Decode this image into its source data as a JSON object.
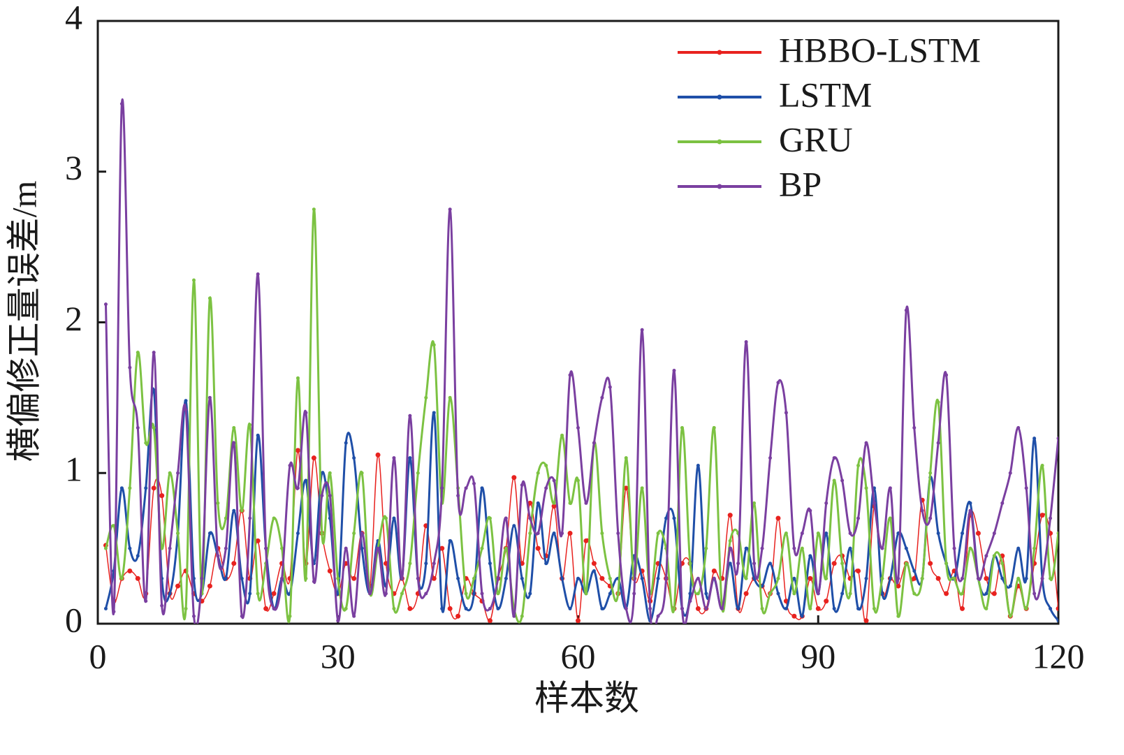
{
  "chart_data": {
    "type": "line",
    "xlabel": "样本数",
    "ylabel": "横偏修正量误差/m",
    "x": [
      1,
      2,
      3,
      4,
      5,
      6,
      7,
      8,
      9,
      10,
      11,
      12,
      13,
      14,
      15,
      16,
      17,
      18,
      19,
      20,
      21,
      22,
      23,
      24,
      25,
      26,
      27,
      28,
      29,
      30,
      31,
      32,
      33,
      34,
      35,
      36,
      37,
      38,
      39,
      40,
      41,
      42,
      43,
      44,
      45,
      46,
      47,
      48,
      49,
      50,
      51,
      52,
      53,
      54,
      55,
      56,
      57,
      58,
      59,
      60,
      61,
      62,
      63,
      64,
      65,
      66,
      67,
      68,
      69,
      70,
      71,
      72,
      73,
      74,
      75,
      76,
      77,
      78,
      79,
      80,
      81,
      82,
      83,
      84,
      85,
      86,
      87,
      88,
      89,
      90,
      91,
      92,
      93,
      94,
      95,
      96,
      97,
      98,
      99,
      100,
      101,
      102,
      103,
      104,
      105,
      106,
      107,
      108,
      109,
      110,
      111,
      112,
      113,
      114,
      115,
      116,
      117,
      118,
      119,
      120
    ],
    "xlim": [
      0,
      120
    ],
    "xticks": [
      0,
      30,
      60,
      90,
      120
    ],
    "ylim": [
      0,
      4
    ],
    "yticks": [
      0,
      1,
      2,
      3,
      4
    ],
    "legend": "upper right",
    "series": [
      {
        "name": "HBBO-LSTM",
        "color": "#e8221f",
        "values": [
          0.52,
          0.15,
          0.3,
          0.35,
          0.3,
          0.2,
          0.9,
          0.85,
          0.2,
          0.25,
          0.35,
          0.2,
          0.15,
          0.25,
          0.5,
          0.3,
          0.4,
          0.75,
          0.3,
          0.55,
          0.1,
          0.2,
          0.4,
          0.3,
          1.15,
          0.4,
          1.1,
          0.6,
          0.35,
          0.2,
          0.4,
          0.3,
          0.6,
          0.25,
          1.12,
          0.4,
          0.2,
          0.3,
          0.1,
          0.2,
          0.65,
          0.3,
          0.5,
          0.1,
          0.05,
          0.3,
          0.2,
          0.15,
          0.02,
          0.3,
          0.5,
          0.97,
          0.4,
          0.8,
          0.5,
          0.45,
          0.78,
          0.3,
          0.6,
          0.02,
          0.55,
          0.4,
          0.3,
          0.25,
          0.2,
          0.9,
          0.3,
          0.35,
          0.15,
          0.4,
          0.3,
          0.1,
          0.4,
          0.4,
          0.1,
          0.1,
          0.35,
          0.3,
          0.72,
          0.1,
          0.2,
          0.3,
          0.25,
          0.2,
          0.7,
          0.15,
          0.05,
          0.05,
          0.3,
          0.1,
          0.15,
          0.4,
          0.45,
          0.3,
          0.35,
          0.02,
          0.78,
          0.2,
          0.3,
          0.25,
          0.4,
          0.3,
          0.82,
          0.4,
          0.3,
          0.2,
          0.35,
          0.1,
          0.72,
          0.6,
          0.3,
          0.2,
          0.45,
          0.05,
          0.25,
          0.1,
          0.4,
          0.72,
          0.6,
          0.1
        ]
      },
      {
        "name": "LSTM",
        "color": "#1f4fa8",
        "values": [
          0.1,
          0.35,
          0.9,
          0.5,
          0.45,
          0.9,
          1.55,
          0.3,
          0.2,
          0.6,
          1.48,
          0.3,
          0.2,
          0.6,
          0.45,
          0.3,
          0.75,
          0.3,
          0.2,
          1.25,
          0.5,
          0.1,
          0.3,
          0.2,
          0.6,
          0.95,
          0.4,
          1.0,
          0.7,
          0.2,
          1.2,
          1.1,
          0.5,
          0.2,
          0.55,
          0.25,
          0.7,
          0.3,
          1.1,
          0.3,
          0.4,
          1.4,
          0.1,
          0.55,
          0.3,
          0.1,
          0.2,
          0.9,
          0.4,
          0.1,
          0.3,
          0.65,
          0.3,
          0.2,
          0.8,
          0.4,
          0.6,
          0.3,
          0.1,
          0.3,
          0.2,
          0.35,
          0.1,
          0.2,
          0.3,
          0.1,
          0.45,
          0.3,
          0.02,
          0.3,
          0.7,
          0.7,
          0.1,
          0.2,
          1.05,
          0.2,
          0.3,
          0.1,
          0.4,
          0.1,
          0.5,
          0.3,
          0.25,
          0.4,
          0.2,
          0.1,
          0.3,
          0.05,
          0.45,
          0.2,
          0.6,
          0.1,
          0.2,
          0.5,
          0.1,
          0.3,
          0.9,
          0.2,
          0.3,
          0.6,
          0.5,
          0.35,
          0.3,
          0.97,
          0.6,
          0.4,
          0.3,
          0.6,
          0.8,
          0.3,
          0.2,
          0.45,
          0.3,
          0.25,
          0.5,
          0.3,
          1.23,
          0.3,
          0.1,
          0.02
        ]
      },
      {
        "name": "GRU",
        "color": "#7cc242",
        "values": [
          0.5,
          0.65,
          0.3,
          0.9,
          1.8,
          1.2,
          1.3,
          0.5,
          1.0,
          0.6,
          0.1,
          2.28,
          0.2,
          2.16,
          0.8,
          0.7,
          1.3,
          0.75,
          1.32,
          0.2,
          0.4,
          0.7,
          0.5,
          0.05,
          1.63,
          0.3,
          2.75,
          0.6,
          1.0,
          0.3,
          0.1,
          0.6,
          1.0,
          0.2,
          0.5,
          0.7,
          0.1,
          0.2,
          0.4,
          1.0,
          1.5,
          1.85,
          0.8,
          1.5,
          0.9,
          0.2,
          0.3,
          0.5,
          0.7,
          0.2,
          0.5,
          0.1,
          0.05,
          0.6,
          1.0,
          1.05,
          0.8,
          1.25,
          0.8,
          0.95,
          0.2,
          1.2,
          0.6,
          0.3,
          0.2,
          1.1,
          0.3,
          0.9,
          0.2,
          0.6,
          0.5,
          0.1,
          1.3,
          0.4,
          0.2,
          0.5,
          1.3,
          0.1,
          0.55,
          0.6,
          0.3,
          0.8,
          0.1,
          0.2,
          0.3,
          0.6,
          0.2,
          0.5,
          0.1,
          0.6,
          0.3,
          0.95,
          0.4,
          0.2,
          1.05,
          0.9,
          0.1,
          0.3,
          0.7,
          0.05,
          0.4,
          0.2,
          0.3,
          1.0,
          1.47,
          0.4,
          0.3,
          0.2,
          0.5,
          0.3,
          0.1,
          0.45,
          0.4,
          0.05,
          0.3,
          0.1,
          0.5,
          1.05,
          0.3,
          0.6
        ]
      },
      {
        "name": "BP",
        "color": "#7a3fa0",
        "values": [
          2.12,
          0.08,
          3.45,
          1.7,
          1.3,
          0.15,
          1.8,
          0.12,
          0.5,
          1.0,
          1.42,
          0.05,
          0.3,
          1.5,
          0.45,
          0.5,
          1.2,
          0.05,
          0.7,
          2.32,
          0.5,
          0.1,
          0.3,
          1.05,
          0.9,
          1.4,
          0.28,
          0.85,
          0.85,
          0.02,
          0.5,
          0.05,
          0.6,
          0.2,
          0.5,
          0.2,
          1.1,
          0.3,
          1.38,
          0.3,
          0.2,
          0.4,
          0.9,
          2.75,
          0.85,
          0.9,
          0.93,
          0.2,
          0.1,
          0.3,
          0.7,
          0.05,
          0.92,
          0.7,
          0.6,
          0.9,
          0.95,
          0.6,
          1.65,
          1.3,
          0.8,
          1.2,
          1.5,
          1.57,
          0.6,
          0.1,
          0.2,
          1.95,
          0.1,
          0.05,
          0.3,
          1.68,
          0.1,
          0.15,
          0.3,
          0.1,
          0.3,
          0.1,
          0.5,
          0.4,
          1.87,
          0.4,
          0.5,
          1.1,
          1.6,
          1.4,
          0.5,
          0.6,
          0.75,
          0.2,
          0.8,
          1.1,
          0.95,
          0.6,
          0.7,
          1.2,
          0.8,
          0.5,
          0.9,
          0.3,
          2.08,
          1.3,
          0.75,
          0.7,
          1.2,
          1.65,
          0.5,
          0.3,
          0.75,
          0.3,
          0.45,
          0.6,
          0.8,
          1.0,
          1.3,
          0.9,
          0.2,
          0.3,
          0.7,
          1.23
        ]
      }
    ]
  }
}
